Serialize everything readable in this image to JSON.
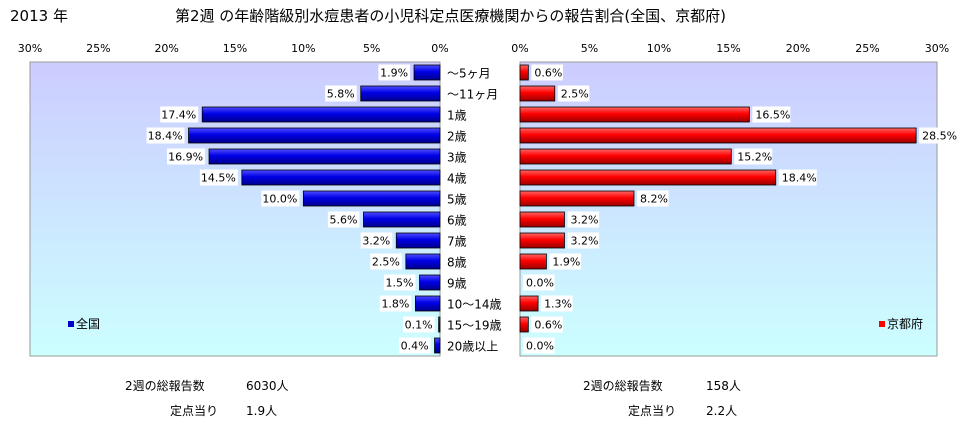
{
  "header": {
    "year": "2013 年",
    "title": "第2週 の年齢階級別水痘患者の小児科定点医療機関からの報告割合(全国、京都府)"
  },
  "chart_data": {
    "type": "bar",
    "orientation": "horizontal-butterfly",
    "categories": [
      "～5ヶ月",
      "～11ヶ月",
      "1歳",
      "2歳",
      "3歳",
      "4歳",
      "5歳",
      "6歳",
      "7歳",
      "8歳",
      "9歳",
      "10～14歳",
      "15～19歳",
      "20歳以上"
    ],
    "series": [
      {
        "name": "全国",
        "color": "#0000cc",
        "values": [
          1.9,
          5.8,
          17.4,
          18.4,
          16.9,
          14.5,
          10.0,
          5.6,
          3.2,
          2.5,
          1.5,
          1.8,
          0.1,
          0.4
        ],
        "labels": [
          "1.9%",
          "5.8%",
          "17.4%",
          "18.4%",
          "16.9%",
          "14.5%",
          "10.0%",
          "5.6%",
          "3.2%",
          "2.5%",
          "1.5%",
          "1.8%",
          "0.1%",
          "0.4%"
        ],
        "xlim": [
          0,
          30
        ],
        "axis_direction": "reversed",
        "ticks": [
          "30%",
          "25%",
          "20%",
          "15%",
          "10%",
          "5%",
          "0%"
        ],
        "legend_label": "全国",
        "legend_position": "bottom-left"
      },
      {
        "name": "京都府",
        "color": "#ff0000",
        "values": [
          0.6,
          2.5,
          16.5,
          28.5,
          15.2,
          18.4,
          8.2,
          3.2,
          3.2,
          1.9,
          0.0,
          1.3,
          0.6,
          0.0
        ],
        "labels": [
          "0.6%",
          "2.5%",
          "16.5%",
          "28.5%",
          "15.2%",
          "18.4%",
          "8.2%",
          "3.2%",
          "3.2%",
          "1.9%",
          "0.0%",
          "1.3%",
          "0.6%",
          "0.0%"
        ],
        "xlim": [
          0,
          30
        ],
        "axis_direction": "normal",
        "ticks": [
          "0%",
          "5%",
          "10%",
          "15%",
          "20%",
          "25%",
          "30%"
        ],
        "legend_label": "京都府",
        "legend_position": "bottom-right"
      }
    ],
    "grid": false
  },
  "footer": {
    "national": {
      "total_label": "2週の総報告数",
      "total_value": "6030人",
      "per_label": "定点当り",
      "per_value": "1.9人"
    },
    "kyoto": {
      "total_label": "2週の総報告数",
      "total_value": "158人",
      "per_label": "定点当り",
      "per_value": "2.2人"
    }
  },
  "colors": {
    "plot_gradient_top": "#ccccff",
    "plot_gradient_bottom": "#ccffff",
    "national_bar": "#0000cc",
    "kyoto_bar": "#ff0000"
  }
}
